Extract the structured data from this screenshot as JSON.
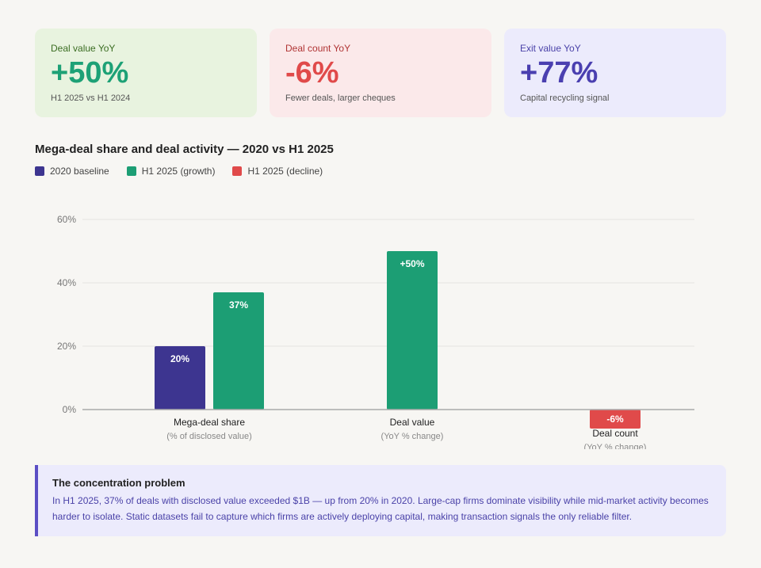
{
  "kpis": [
    {
      "label": "Deal value YoY",
      "value": "+50%",
      "sub": "H1 2025 vs H1 2024"
    },
    {
      "label": "Deal count YoY",
      "value": "-6%",
      "sub": "Fewer deals, larger cheques"
    },
    {
      "label": "Exit value YoY",
      "value": "+77%",
      "sub": "Capital recycling signal"
    }
  ],
  "colors": {
    "baseline": "#3d3590",
    "growth": "#1c9e74",
    "decline": "#e04a4a",
    "grid": "#e5e4e0",
    "axis": "#aaaaaa"
  },
  "chart_data": {
    "type": "bar",
    "title": "Mega-deal share and deal activity — 2020 vs H1 2025",
    "legend": [
      {
        "name": "2020 baseline",
        "color": "#3d3590"
      },
      {
        "name": "H1 2025 (growth)",
        "color": "#1c9e74"
      },
      {
        "name": "H1 2025 (decline)",
        "color": "#e04a4a"
      }
    ],
    "ylim": [
      0,
      60
    ],
    "yticks": [
      0,
      20,
      40,
      60
    ],
    "ytick_labels": [
      "0%",
      "20%",
      "40%",
      "60%"
    ],
    "grid": true,
    "groups": [
      {
        "category": "Mega-deal share",
        "sublabel": "(% of disclosed value)",
        "bars": [
          {
            "series": "2020 baseline",
            "value": 20,
            "label": "20%"
          },
          {
            "series": "H1 2025 (growth)",
            "value": 37,
            "label": "37%"
          }
        ]
      },
      {
        "category": "Deal value",
        "sublabel": "(YoY % change)",
        "bars": [
          {
            "series": "H1 2025 (growth)",
            "value": 50,
            "label": "+50%"
          }
        ]
      },
      {
        "category": "Deal count",
        "sublabel": "(YoY % change)",
        "bars": [
          {
            "series": "H1 2025 (decline)",
            "value": -6,
            "label": "-6%"
          }
        ]
      }
    ]
  },
  "note": {
    "title": "The concentration problem",
    "body": "In H1 2025, 37% of deals with disclosed value exceeded $1B — up from 20% in 2020. Large-cap firms dominate visibility while mid-market activity becomes harder to isolate. Static datasets fail to capture which firms are actively deploying capital, making transaction signals the only reliable filter."
  }
}
